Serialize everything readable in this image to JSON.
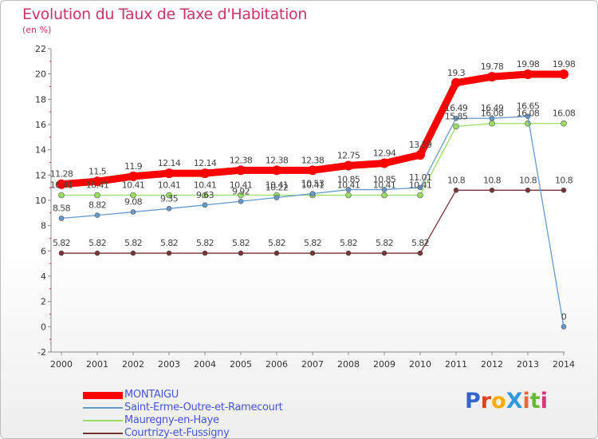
{
  "chart_data": {
    "type": "line",
    "title": "Evolution du Taux de Taxe d'Habitation",
    "subtitle": "(en %)",
    "x": [
      "2000",
      "2001",
      "2002",
      "2003",
      "2004",
      "2005",
      "2006",
      "2007",
      "2008",
      "2009",
      "2010",
      "2011",
      "2012",
      "2013",
      "2014"
    ],
    "ylim": [
      -2,
      22
    ],
    "yticks": [
      -2,
      0,
      2,
      4,
      6,
      8,
      10,
      12,
      14,
      16,
      18,
      20,
      22
    ],
    "grid": false,
    "legend_position": "bottom-left",
    "series": [
      {
        "name": "MONTAIGU",
        "color": "#ff0000",
        "values": [
          11.28,
          11.5,
          11.9,
          12.14,
          12.14,
          12.38,
          12.38,
          12.38,
          12.75,
          12.94,
          13.59,
          19.3,
          19.78,
          19.98,
          19.98
        ],
        "labels": [
          "11.28",
          "11.5",
          "11.9",
          "12.14",
          "12.14",
          "12.38",
          "12.38",
          "12.38",
          "12.75",
          "12.94",
          "13.59",
          "19.3",
          "19.78",
          "19.98",
          "19.98"
        ]
      },
      {
        "name": "Saint-Erme-Outre-et-Ramecourt",
        "color": "#6699cc",
        "values": [
          8.58,
          8.82,
          9.08,
          9.35,
          9.63,
          9.92,
          10.22,
          10.53,
          10.85,
          10.85,
          11.01,
          16.49,
          16.49,
          16.65,
          0
        ],
        "labels": [
          "8.58",
          "8.82",
          "9.08",
          "9.35",
          "9.63",
          "9.92",
          "10.22",
          "10.53",
          "10.85",
          "10.85",
          "11.01",
          "16.49",
          "16.49",
          "16.65",
          "0"
        ]
      },
      {
        "name": "Mauregny-en-Haye",
        "color": "#99dd66",
        "values": [
          10.41,
          10.41,
          10.41,
          10.41,
          10.41,
          10.41,
          10.41,
          10.41,
          10.41,
          10.41,
          10.41,
          15.85,
          16.08,
          16.08,
          16.08
        ],
        "labels": [
          "10.41",
          "10.41",
          "10.41",
          "10.41",
          "10.41",
          "10.41",
          "10.41",
          "10.41",
          "10.41",
          "10.41",
          "10.41",
          "15.85",
          "16.08",
          "16.08",
          "16.08"
        ]
      },
      {
        "name": "Courtrizy-et-Fussigny",
        "color": "#773333",
        "values": [
          5.82,
          5.82,
          5.82,
          5.82,
          5.82,
          5.82,
          5.82,
          5.82,
          5.82,
          5.82,
          5.82,
          10.8,
          10.8,
          10.8,
          10.8
        ],
        "labels": [
          "5.82",
          "5.82",
          "5.82",
          "5.82",
          "5.82",
          "5.82",
          "5.82",
          "5.82",
          "5.82",
          "5.82",
          "5.82",
          "10.8",
          "10.8",
          "10.8",
          "10.8"
        ]
      }
    ]
  },
  "logo": {
    "text": "ProXiti",
    "letters": [
      "P",
      "r",
      "o",
      "X",
      "i",
      "t",
      "i"
    ],
    "colors": [
      "#3366cc",
      "#dd4422",
      "#ffaa00",
      "#3399dd",
      "#ff6633",
      "#66bb33",
      "#dd3377"
    ]
  }
}
